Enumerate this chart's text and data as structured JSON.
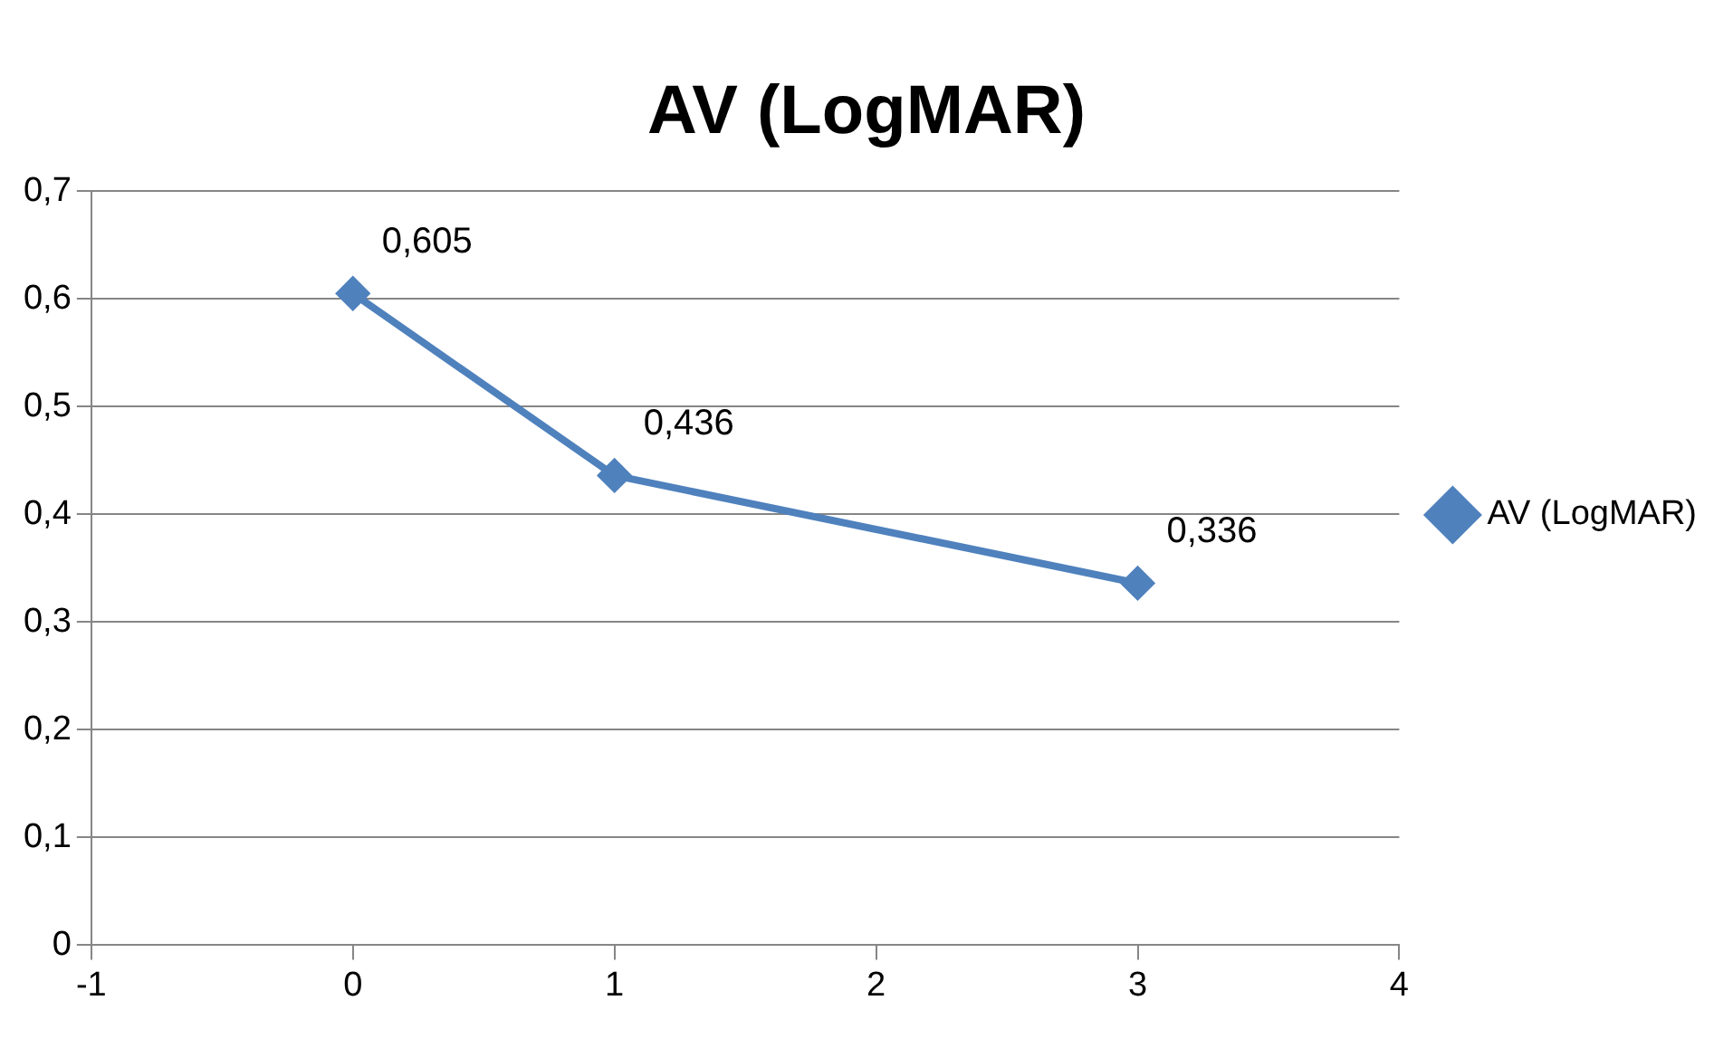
{
  "chart_data": {
    "type": "line",
    "title": "AV (LogMAR)",
    "x": [
      0,
      1,
      3
    ],
    "series": [
      {
        "name": "AV (LogMAR)",
        "color": "#4f81bd",
        "values": [
          0.605,
          0.436,
          0.336
        ],
        "value_labels": [
          "0,605",
          "0,436",
          "0,336"
        ]
      }
    ],
    "xlim": [
      -1,
      4
    ],
    "xticks": [
      -1,
      0,
      1,
      2,
      3,
      4
    ],
    "ylim": [
      0,
      0.7
    ],
    "yticks": [
      0,
      {
        "value": 0.1,
        "label": "0,1"
      },
      {
        "value": 0.2,
        "label": "0,2"
      },
      {
        "value": 0.3,
        "label": "0,3"
      },
      {
        "value": 0.4,
        "label": "0,4"
      },
      {
        "value": 0.5,
        "label": "0,5"
      },
      {
        "value": 0.6,
        "label": "0,6"
      },
      {
        "value": 0.7,
        "label": "0,7"
      }
    ],
    "grid": "y",
    "legend": "right",
    "marker": "diamond",
    "line_style": "solid"
  }
}
